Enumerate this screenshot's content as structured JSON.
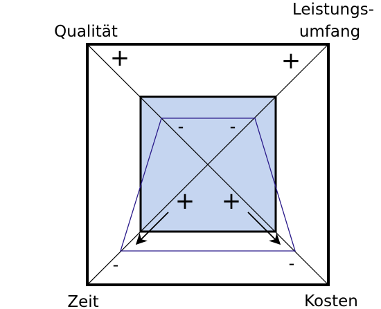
{
  "labels": {
    "top_left": "Qualität",
    "top_right_line1": "Leistungs-",
    "top_right_line2": "umfang",
    "bottom_left": "Zeit",
    "bottom_right": "Kosten"
  },
  "signs": {
    "outer_top_left": "+",
    "outer_top_right": "+",
    "outer_bottom_left": "-",
    "outer_bottom_right": "-",
    "inner_top_left": "-",
    "inner_top_right": "-",
    "inner_bottom_left": "+",
    "inner_bottom_right": "+"
  },
  "colors": {
    "inner_fill": "#c5d5f0",
    "trapezoid_stroke": "#2a1a8a",
    "line": "#000000"
  }
}
